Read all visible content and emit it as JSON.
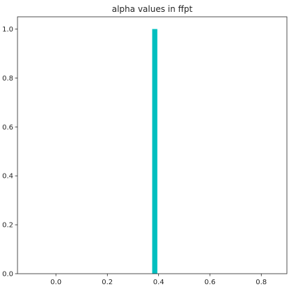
{
  "chart_data": {
    "type": "bar",
    "title": "alpha values in ffpt",
    "xlabel": "",
    "ylabel": "",
    "xlim": [
      -0.15,
      0.9
    ],
    "ylim": [
      0.0,
      1.05
    ],
    "xticks": [
      0.0,
      0.2,
      0.4,
      0.6,
      0.8
    ],
    "xtick_labels": [
      "0.0",
      "0.2",
      "0.4",
      "0.6",
      "0.8"
    ],
    "yticks": [
      0.0,
      0.2,
      0.4,
      0.6,
      0.8,
      1.0
    ],
    "ytick_labels": [
      "0.0",
      "0.2",
      "0.4",
      "0.6",
      "0.8",
      "1.0"
    ],
    "bars": [
      {
        "x_start": 0.375,
        "x_end": 0.395,
        "value": 1.0
      }
    ],
    "bar_color": "#00bfbf",
    "grid": false,
    "legend": "none"
  }
}
